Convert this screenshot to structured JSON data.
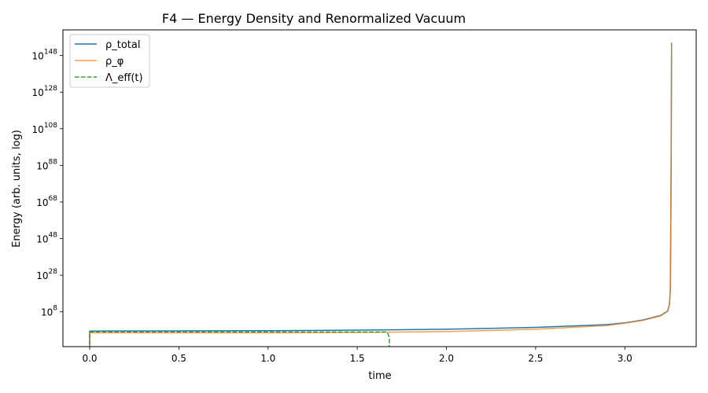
{
  "chart_data": {
    "type": "line",
    "title": "F4 — Energy Density and Renormalized Vacuum",
    "xlabel": "time",
    "ylabel": "Energy (arb. units, log)",
    "xlim": [
      -0.15,
      3.4
    ],
    "ylog_lim": [
      -11,
      162
    ],
    "x_ticks": [
      0.0,
      0.5,
      1.0,
      1.5,
      2.0,
      2.5,
      3.0
    ],
    "x_tick_labels": [
      "0.0",
      "0.5",
      "1.0",
      "1.5",
      "2.0",
      "2.5",
      "3.0"
    ],
    "y_ticks_exp": [
      8,
      28,
      48,
      68,
      88,
      108,
      128,
      148
    ],
    "y_tick_labels": [
      {
        "base": "10",
        "exp": "8"
      },
      {
        "base": "10",
        "exp": "28"
      },
      {
        "base": "10",
        "exp": "48"
      },
      {
        "base": "10",
        "exp": "68"
      },
      {
        "base": "10",
        "exp": "88"
      },
      {
        "base": "10",
        "exp": "108"
      },
      {
        "base": "10",
        "exp": "128"
      },
      {
        "base": "10",
        "exp": "148"
      }
    ],
    "grid": false,
    "legend_position": "upper-left",
    "series": [
      {
        "name": "ρ_total",
        "color": "#1f77b4",
        "style": "solid",
        "log10_points": [
          [
            0.0,
            -20
          ],
          [
            0.0,
            -2.5
          ],
          [
            0.5,
            -2.4
          ],
          [
            1.0,
            -2.3
          ],
          [
            1.5,
            -2.0
          ],
          [
            2.0,
            -1.5
          ],
          [
            2.5,
            -0.5
          ],
          [
            2.9,
            1.0
          ],
          [
            3.0,
            2.0
          ],
          [
            3.1,
            3.5
          ],
          [
            3.2,
            6.0
          ],
          [
            3.24,
            8.5
          ],
          [
            3.25,
            12.0
          ],
          [
            3.255,
            20.0
          ],
          [
            3.258,
            60.0
          ],
          [
            3.26,
            100.0
          ],
          [
            3.262,
            155.0
          ]
        ]
      },
      {
        "name": "ρ_φ",
        "color": "#ff7f0e",
        "style": "solid",
        "log10_points": [
          [
            0.0,
            -20
          ],
          [
            0.0,
            -3.5
          ],
          [
            0.5,
            -3.5
          ],
          [
            1.0,
            -3.5
          ],
          [
            1.5,
            -3.3
          ],
          [
            2.0,
            -2.8
          ],
          [
            2.5,
            -1.5
          ],
          [
            2.9,
            0.5
          ],
          [
            3.0,
            1.8
          ],
          [
            3.1,
            3.3
          ],
          [
            3.2,
            5.8
          ],
          [
            3.24,
            8.3
          ],
          [
            3.25,
            12.0
          ],
          [
            3.255,
            20.0
          ],
          [
            3.258,
            60.0
          ],
          [
            3.26,
            100.0
          ],
          [
            3.262,
            155.0
          ]
        ]
      },
      {
        "name": "Λ_eff(t)",
        "color": "#2ca02c",
        "style": "dashed",
        "log10_points": [
          [
            0.0,
            -20
          ],
          [
            0.0,
            -3.0
          ],
          [
            1.0,
            -3.0
          ],
          [
            1.5,
            -3.0
          ],
          [
            1.66,
            -3.0
          ],
          [
            1.67,
            -3.5
          ],
          [
            1.68,
            -6.0
          ],
          [
            1.68,
            -20
          ]
        ]
      }
    ]
  }
}
